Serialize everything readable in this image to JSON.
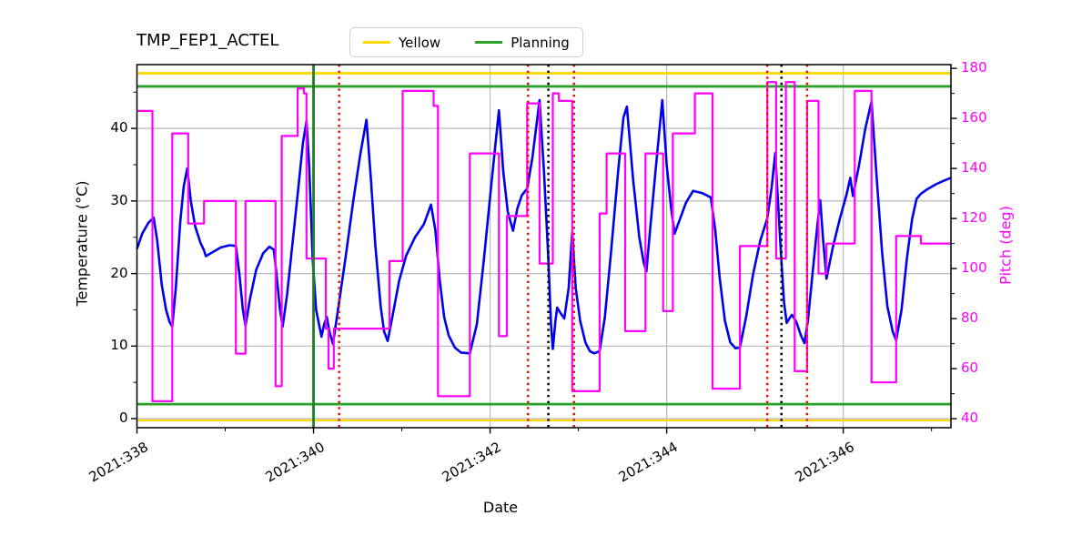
{
  "chart_data": {
    "type": "line",
    "title": "TMP_FEP1_ACTEL",
    "xlabel": "Date",
    "grid": "on",
    "grid_color": "#b9b9b9",
    "background": "#ffffff",
    "legend": {
      "position": "top-center",
      "items": [
        {
          "label": "Yellow",
          "color": "#ffd700"
        },
        {
          "label": "Planning",
          "color": "#28a228"
        }
      ]
    },
    "axes": {
      "x": {
        "label": "Date",
        "lim": [
          338.0,
          347.22
        ],
        "major_ticks": [
          {
            "value": 338,
            "label": "2021:338"
          },
          {
            "value": 340,
            "label": "2021:340"
          },
          {
            "value": 342,
            "label": "2021:342"
          },
          {
            "value": 344,
            "label": "2021:344"
          },
          {
            "value": 346,
            "label": "2021:346"
          }
        ],
        "minor_ticks": [
          339,
          341,
          343,
          345,
          347
        ],
        "gridlines": [
          338,
          340,
          342,
          344,
          346
        ]
      },
      "y_left": {
        "label": "Temperature (°C)",
        "lim": [
          -1.25,
          48.8
        ],
        "major_ticks": [
          0,
          10,
          20,
          30,
          40
        ],
        "minor_ticks": [
          5,
          15,
          25,
          35,
          45
        ],
        "color": "#000000"
      },
      "y_right": {
        "label": "Pitch (deg)",
        "lim": [
          36.4,
          181.5
        ],
        "major_ticks": [
          40,
          60,
          80,
          100,
          120,
          140,
          160,
          180
        ],
        "minor_ticks": [
          50,
          70,
          90,
          110,
          130,
          150,
          170
        ],
        "color": "#ff00ff"
      }
    },
    "limit_lines": [
      {
        "name": "yellow-high",
        "axis": "left",
        "y": 47.6,
        "color": "#ffd700",
        "width": 2.8
      },
      {
        "name": "yellow-low",
        "axis": "left",
        "y": -0.25,
        "color": "#ffd700",
        "width": 2.2
      },
      {
        "name": "planning-high",
        "axis": "left",
        "y": 45.8,
        "color": "#28a228",
        "width": 2.8
      },
      {
        "name": "planning-low",
        "axis": "left",
        "y": 2.0,
        "color": "#28a228",
        "width": 2.8
      }
    ],
    "vlines": [
      {
        "x": 340.0,
        "color": "#1e7d1e",
        "style": "solid",
        "width": 2.8
      },
      {
        "x": 340.29,
        "color": "#ee1100",
        "style": "dotted",
        "width": 2.5
      },
      {
        "x": 342.43,
        "color": "#ee1100",
        "style": "dotted",
        "width": 2.5
      },
      {
        "x": 342.95,
        "color": "#ee1100",
        "style": "dotted",
        "width": 2.5
      },
      {
        "x": 345.14,
        "color": "#ee1100",
        "style": "dotted",
        "width": 2.5
      },
      {
        "x": 345.59,
        "color": "#ee1100",
        "style": "dotted",
        "width": 2.5
      },
      {
        "x": 342.66,
        "color": "#000000",
        "style": "dotted",
        "width": 2.5
      },
      {
        "x": 345.3,
        "color": "#000000",
        "style": "dotted",
        "width": 2.5
      }
    ],
    "series": [
      {
        "name": "temperature",
        "axis": "left",
        "style": "line",
        "color": "#0000ee",
        "width": 2.6,
        "points": [
          [
            338.0,
            23.4
          ],
          [
            338.06,
            25.5
          ],
          [
            338.13,
            27.0
          ],
          [
            338.19,
            27.7
          ],
          [
            338.23,
            24.5
          ],
          [
            338.28,
            18.5
          ],
          [
            338.33,
            15.0
          ],
          [
            338.37,
            13.3
          ],
          [
            338.4,
            12.7
          ],
          [
            338.44,
            18.0
          ],
          [
            338.49,
            27.0
          ],
          [
            338.53,
            32.0
          ],
          [
            338.57,
            34.5
          ],
          [
            338.61,
            30.0
          ],
          [
            338.66,
            26.5
          ],
          [
            338.72,
            24.2
          ],
          [
            338.76,
            23.2
          ],
          [
            338.78,
            22.4
          ],
          [
            338.85,
            22.9
          ],
          [
            338.95,
            23.6
          ],
          [
            339.05,
            23.9
          ],
          [
            339.12,
            23.8
          ],
          [
            339.16,
            20.0
          ],
          [
            339.2,
            15.0
          ],
          [
            339.23,
            12.8
          ],
          [
            339.28,
            16.5
          ],
          [
            339.35,
            20.5
          ],
          [
            339.43,
            22.8
          ],
          [
            339.5,
            23.7
          ],
          [
            339.55,
            23.3
          ],
          [
            339.58,
            20.0
          ],
          [
            339.62,
            15.0
          ],
          [
            339.65,
            12.7
          ],
          [
            339.7,
            17.0
          ],
          [
            339.76,
            24.0
          ],
          [
            339.83,
            32.0
          ],
          [
            339.88,
            38.0
          ],
          [
            339.92,
            41.0
          ],
          [
            339.95,
            35.0
          ],
          [
            339.99,
            22.0
          ],
          [
            340.03,
            15.0
          ],
          [
            340.09,
            11.3
          ],
          [
            340.12,
            13.0
          ],
          [
            340.15,
            14.0
          ],
          [
            340.18,
            12.0
          ],
          [
            340.22,
            10.3
          ],
          [
            340.29,
            16.1
          ],
          [
            340.36,
            22.0
          ],
          [
            340.45,
            30.0
          ],
          [
            340.53,
            36.5
          ],
          [
            340.6,
            41.2
          ],
          [
            340.65,
            33.0
          ],
          [
            340.7,
            24.0
          ],
          [
            340.76,
            15.5
          ],
          [
            340.8,
            12.0
          ],
          [
            340.84,
            10.7
          ],
          [
            340.9,
            14.5
          ],
          [
            340.97,
            19.0
          ],
          [
            341.05,
            22.5
          ],
          [
            341.15,
            25.0
          ],
          [
            341.25,
            26.8
          ],
          [
            341.33,
            29.5
          ],
          [
            341.38,
            26.0
          ],
          [
            341.43,
            19.0
          ],
          [
            341.48,
            14.0
          ],
          [
            341.53,
            11.5
          ],
          [
            341.6,
            9.8
          ],
          [
            341.67,
            9.1
          ],
          [
            341.77,
            9.0
          ],
          [
            341.85,
            13.0
          ],
          [
            341.93,
            22.0
          ],
          [
            342.02,
            33.0
          ],
          [
            342.1,
            42.5
          ],
          [
            342.15,
            34.0
          ],
          [
            342.2,
            28.5
          ],
          [
            342.26,
            25.9
          ],
          [
            342.31,
            29.0
          ],
          [
            342.36,
            30.8
          ],
          [
            342.42,
            31.7
          ],
          [
            342.48,
            36.0
          ],
          [
            342.56,
            43.9
          ],
          [
            342.61,
            34.0
          ],
          [
            342.66,
            22.0
          ],
          [
            342.69,
            13.0
          ],
          [
            342.71,
            9.6
          ],
          [
            342.74,
            13.5
          ],
          [
            342.76,
            15.3
          ],
          [
            342.8,
            14.5
          ],
          [
            342.84,
            13.8
          ],
          [
            342.89,
            18.0
          ],
          [
            342.93,
            25.7
          ],
          [
            342.97,
            18.0
          ],
          [
            343.02,
            13.5
          ],
          [
            343.08,
            10.5
          ],
          [
            343.13,
            9.3
          ],
          [
            343.18,
            9.0
          ],
          [
            343.24,
            9.3
          ],
          [
            343.3,
            14.0
          ],
          [
            343.37,
            23.0
          ],
          [
            343.45,
            34.0
          ],
          [
            343.51,
            41.5
          ],
          [
            343.55,
            43.0
          ],
          [
            343.62,
            33.0
          ],
          [
            343.69,
            25.0
          ],
          [
            343.74,
            21.5
          ],
          [
            343.77,
            20.3
          ],
          [
            343.82,
            27.0
          ],
          [
            343.88,
            35.0
          ],
          [
            343.95,
            43.9
          ],
          [
            344.0,
            35.0
          ],
          [
            344.05,
            29.0
          ],
          [
            344.09,
            25.5
          ],
          [
            344.15,
            27.5
          ],
          [
            344.22,
            29.8
          ],
          [
            344.3,
            31.4
          ],
          [
            344.4,
            31.1
          ],
          [
            344.5,
            30.5
          ],
          [
            344.55,
            26.0
          ],
          [
            344.6,
            19.5
          ],
          [
            344.66,
            13.5
          ],
          [
            344.72,
            10.5
          ],
          [
            344.78,
            9.7
          ],
          [
            344.83,
            9.8
          ],
          [
            344.9,
            14.0
          ],
          [
            344.98,
            20.0
          ],
          [
            345.06,
            24.5
          ],
          [
            345.14,
            27.6
          ],
          [
            345.19,
            32.0
          ],
          [
            345.23,
            36.6
          ],
          [
            345.27,
            28.0
          ],
          [
            345.3,
            21.7
          ],
          [
            345.33,
            16.0
          ],
          [
            345.36,
            13.2
          ],
          [
            345.4,
            14.0
          ],
          [
            345.42,
            14.3
          ],
          [
            345.47,
            13.3
          ],
          [
            345.52,
            11.5
          ],
          [
            345.56,
            10.4
          ],
          [
            345.6,
            13.5
          ],
          [
            345.66,
            21.0
          ],
          [
            345.71,
            27.0
          ],
          [
            345.74,
            30.1
          ],
          [
            345.77,
            25.0
          ],
          [
            345.81,
            19.3
          ],
          [
            345.88,
            23.5
          ],
          [
            345.96,
            27.5
          ],
          [
            346.04,
            31.0
          ],
          [
            346.08,
            33.2
          ],
          [
            346.11,
            30.7
          ],
          [
            346.18,
            35.0
          ],
          [
            346.25,
            40.0
          ],
          [
            346.32,
            43.7
          ],
          [
            346.38,
            33.0
          ],
          [
            346.44,
            23.0
          ],
          [
            346.5,
            15.5
          ],
          [
            346.56,
            12.0
          ],
          [
            346.6,
            10.8
          ],
          [
            346.66,
            15.0
          ],
          [
            346.72,
            22.0
          ],
          [
            346.78,
            27.5
          ],
          [
            346.83,
            30.3
          ],
          [
            346.88,
            31.0
          ],
          [
            346.95,
            31.6
          ],
          [
            347.05,
            32.3
          ],
          [
            347.14,
            32.8
          ],
          [
            347.22,
            33.2
          ]
        ]
      },
      {
        "name": "pitch",
        "axis": "right",
        "style": "step-post",
        "color": "#ff00ff",
        "width": 2.2,
        "end_x": 347.22,
        "points": [
          [
            338.0,
            163
          ],
          [
            338.175,
            47
          ],
          [
            338.4,
            154
          ],
          [
            338.58,
            118
          ],
          [
            338.76,
            127
          ],
          [
            339.12,
            66
          ],
          [
            339.23,
            127
          ],
          [
            339.57,
            53
          ],
          [
            339.64,
            153
          ],
          [
            339.82,
            172
          ],
          [
            339.89,
            170
          ],
          [
            339.92,
            104
          ],
          [
            340.14,
            76
          ],
          [
            340.17,
            60
          ],
          [
            340.23,
            76
          ],
          [
            340.86,
            103
          ],
          [
            341.01,
            171
          ],
          [
            341.36,
            165
          ],
          [
            341.41,
            49
          ],
          [
            341.77,
            146
          ],
          [
            342.1,
            73
          ],
          [
            342.19,
            121
          ],
          [
            342.42,
            166
          ],
          [
            342.56,
            102
          ],
          [
            342.71,
            170
          ],
          [
            342.78,
            167
          ],
          [
            342.93,
            51
          ],
          [
            343.24,
            122
          ],
          [
            343.32,
            146
          ],
          [
            343.53,
            75
          ],
          [
            343.76,
            146
          ],
          [
            343.96,
            83
          ],
          [
            344.07,
            154
          ],
          [
            344.32,
            170
          ],
          [
            344.52,
            52
          ],
          [
            344.83,
            109
          ],
          [
            345.14,
            174.5
          ],
          [
            345.24,
            104
          ],
          [
            345.35,
            174.5
          ],
          [
            345.45,
            59
          ],
          [
            345.59,
            167
          ],
          [
            345.72,
            98
          ],
          [
            345.81,
            110
          ],
          [
            346.13,
            171
          ],
          [
            346.32,
            54.5
          ],
          [
            346.6,
            113
          ],
          [
            346.88,
            110
          ]
        ]
      }
    ]
  }
}
